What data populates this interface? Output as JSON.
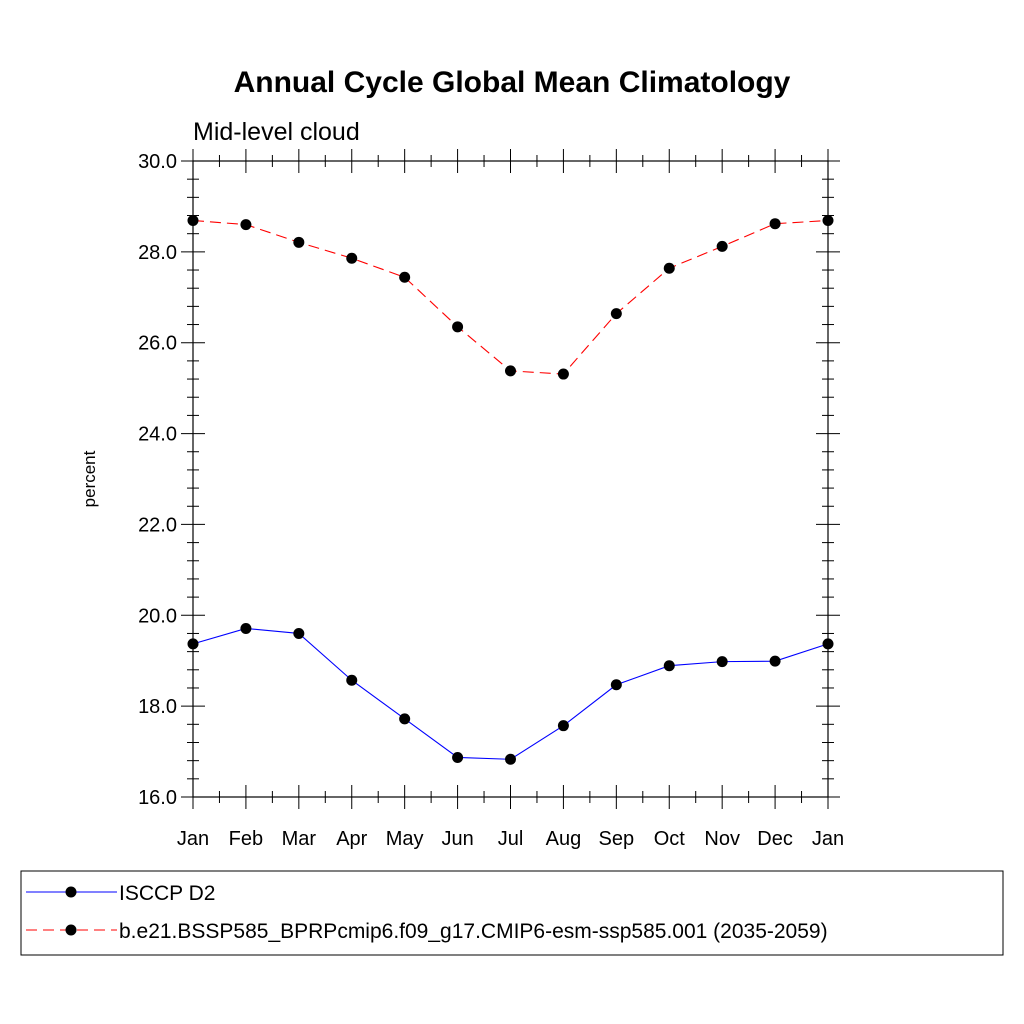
{
  "chart_data": {
    "type": "line",
    "title": "Annual Cycle Global Mean Climatology",
    "subtitle": "Mid-level cloud",
    "xlabel": "",
    "ylabel": "percent",
    "categories": [
      "Jan",
      "Feb",
      "Mar",
      "Apr",
      "May",
      "Jun",
      "Jul",
      "Aug",
      "Sep",
      "Oct",
      "Nov",
      "Dec",
      "Jan"
    ],
    "ylim": [
      16.0,
      30.0
    ],
    "yticks": [
      "16.0",
      "18.0",
      "20.0",
      "22.0",
      "24.0",
      "26.0",
      "28.0",
      "30.0"
    ],
    "grid": false,
    "legend_position": "bottom",
    "series": [
      {
        "name": "ISCCP D2",
        "color": "#0000ff",
        "line_style": "solid",
        "values": [
          19.37,
          19.71,
          19.6,
          18.57,
          17.72,
          16.87,
          16.83,
          17.57,
          18.47,
          18.89,
          18.98,
          18.99,
          19.37
        ]
      },
      {
        "name": "b.e21.BSSP585_BPRPcmip6.f09_g17.CMIP6-esm-ssp585.001 (2035-2059)",
        "color": "#ff0000",
        "line_style": "dashed",
        "values": [
          28.69,
          28.6,
          28.21,
          27.86,
          27.44,
          26.35,
          25.38,
          25.31,
          26.64,
          27.64,
          28.12,
          28.62,
          28.69
        ]
      }
    ]
  }
}
